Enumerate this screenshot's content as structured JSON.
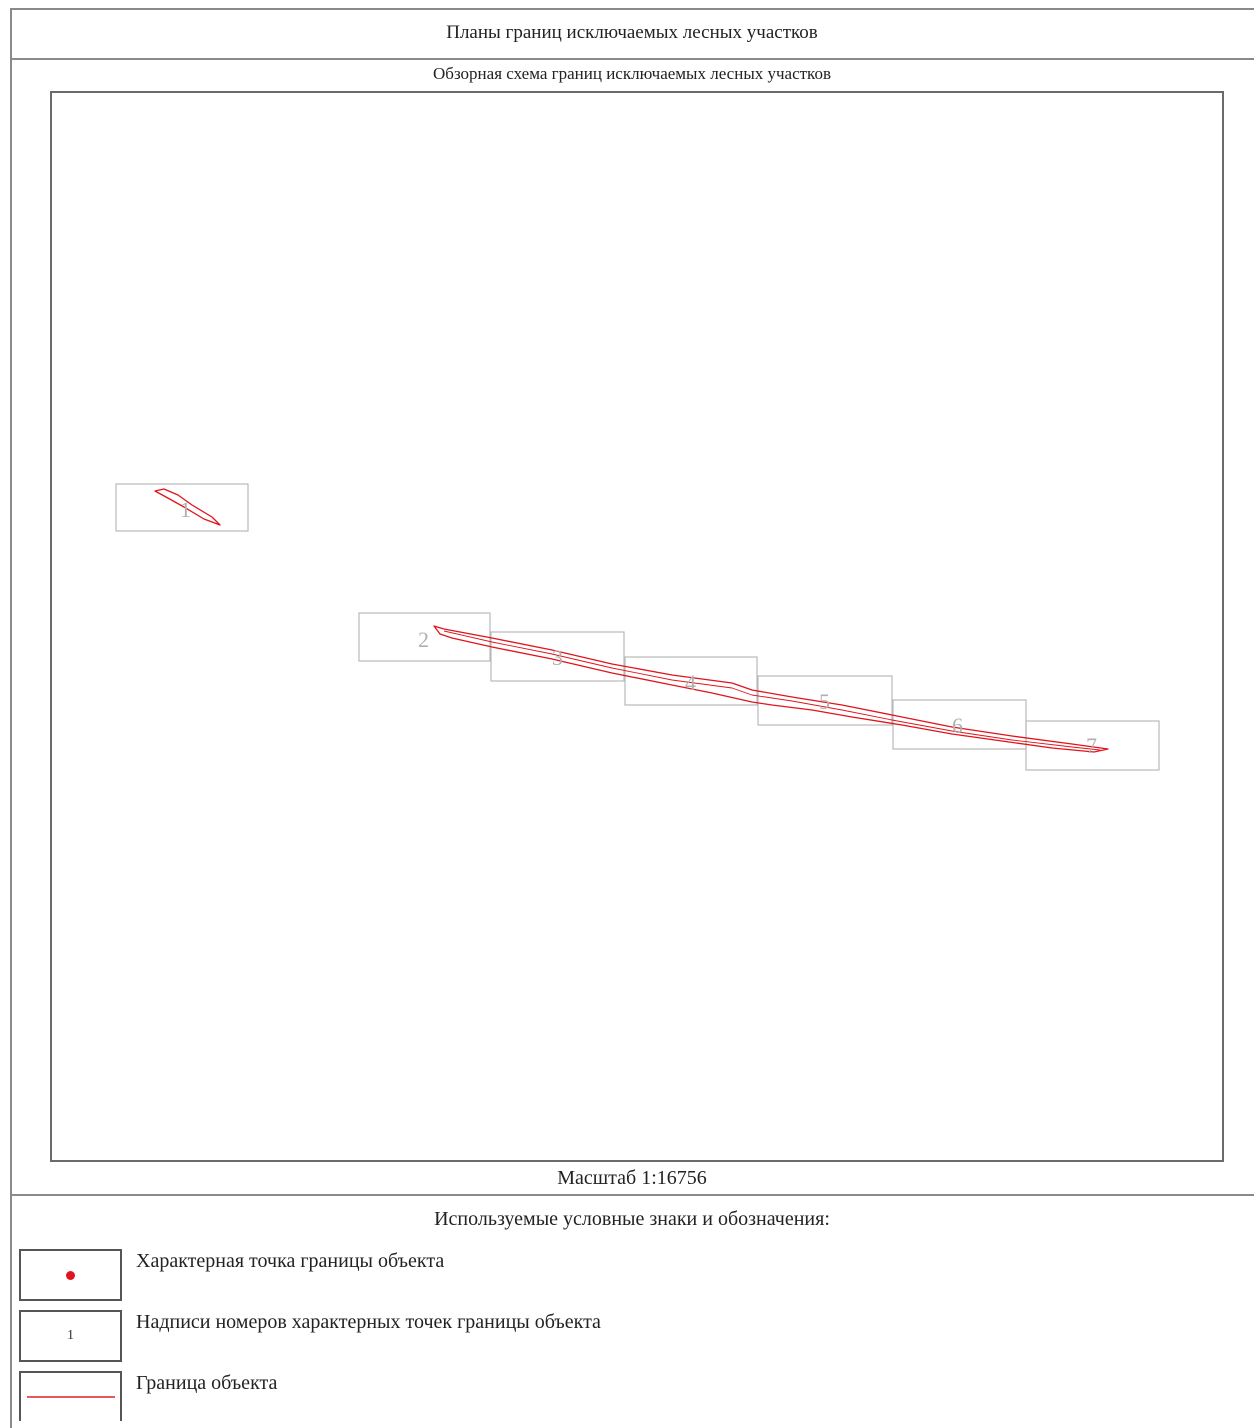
{
  "header": {
    "title": "Планы границ исключаемых лесных участков"
  },
  "map": {
    "subtitle": "Обзорная схема границ исключаемых лесных участков",
    "scale": "Масштаб 1:16756",
    "boundary_color": "#e0141c",
    "sheet_labels": [
      "1",
      "2",
      "3",
      "4",
      "5",
      "6",
      "7"
    ]
  },
  "legend": {
    "title": "Используемые условные знаки и обозначения:",
    "items": [
      {
        "symbol": "red-dot-icon",
        "label": "Характерная точка границы объекта"
      },
      {
        "symbol": "1",
        "label": "Надписи номеров характерных точек границы объекта"
      },
      {
        "symbol": "red-line-icon",
        "label": "Граница объекта"
      }
    ]
  }
}
